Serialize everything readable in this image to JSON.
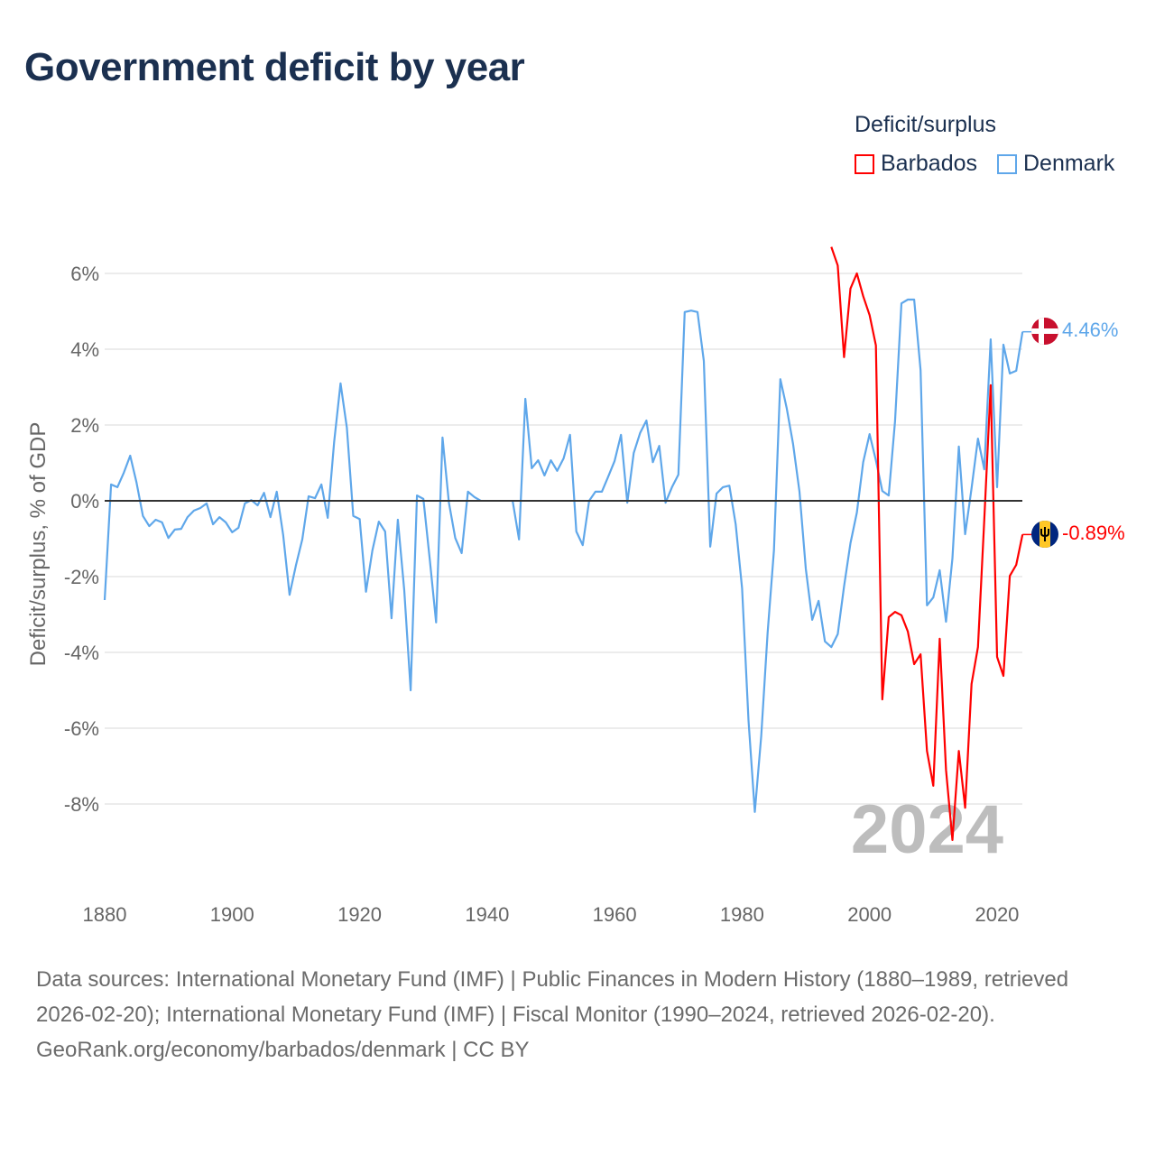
{
  "title": "Government deficit by year",
  "legend": {
    "title": "Deficit/surplus",
    "items": [
      {
        "name": "Barbados",
        "color": "#ff0000"
      },
      {
        "name": "Denmark",
        "color": "#5fa7ea"
      }
    ]
  },
  "year_watermark": "2024",
  "footer": {
    "sources": "Data sources: International Monetary Fund (IMF) | Public Finances in Modern History (1880–1989, retrieved 2026-02-20); International Monetary Fund (IMF) | Fiscal Monitor (1990–2024, retrieved 2026-02-20).",
    "credit": "GeoRank.org/economy/barbados/denmark | CC BY"
  },
  "chart_data": {
    "type": "line",
    "title": "Government deficit by year",
    "xlabel": "",
    "ylabel": "Deficit/surplus, % of GDP",
    "xlim": [
      1880,
      2024
    ],
    "ylim": [
      -9.5,
      7
    ],
    "x_ticks": [
      1880,
      1900,
      1920,
      1940,
      1960,
      1980,
      2000,
      2020
    ],
    "x_tick_labels": [
      "1880",
      "1900",
      "1920",
      "1940",
      "1960",
      "1980",
      "2000",
      "2020"
    ],
    "y_ticks": [
      6,
      4,
      2,
      0,
      -2,
      -4,
      -6,
      -8
    ],
    "y_tick_labels": [
      "6%",
      "4%",
      "2%",
      "0%",
      "-2%",
      "-4%",
      "-6%",
      "-8%"
    ],
    "grid": true,
    "legend_position": "top-right",
    "series": [
      {
        "name": "Denmark",
        "color": "#5fa7ea",
        "end_label": "4.46%",
        "flag": "denmark-flag",
        "start_year": 1880,
        "values": [
          -2.62,
          0.43,
          0.36,
          0.74,
          1.19,
          0.48,
          -0.4,
          -0.67,
          -0.5,
          -0.57,
          -0.98,
          -0.76,
          -0.74,
          -0.43,
          -0.26,
          -0.19,
          -0.07,
          -0.62,
          -0.43,
          -0.57,
          -0.83,
          -0.71,
          -0.07,
          0.02,
          -0.12,
          0.21,
          -0.43,
          0.24,
          -0.9,
          -2.48,
          -1.71,
          -1.02,
          0.12,
          0.07,
          0.43,
          -0.45,
          1.55,
          3.1,
          1.93,
          -0.4,
          -0.48,
          -2.4,
          -1.31,
          -0.55,
          -0.81,
          -3.1,
          -0.5,
          -2.36,
          -5.0,
          0.14,
          0.05,
          -1.55,
          -3.21,
          1.67,
          -0.05,
          -0.98,
          -1.38,
          0.24,
          0.1,
          0.0,
          null,
          null,
          null,
          null,
          0.0,
          -1.02,
          2.69,
          0.86,
          1.07,
          0.67,
          1.07,
          0.79,
          1.12,
          1.74,
          -0.81,
          -1.17,
          0.0,
          0.24,
          0.24,
          0.64,
          1.05,
          1.74,
          -0.05,
          1.26,
          1.79,
          2.12,
          1.02,
          1.45,
          -0.05,
          0.36,
          0.69,
          4.98,
          5.02,
          4.98,
          3.69,
          -1.21,
          0.19,
          0.36,
          0.4,
          -0.62,
          -2.31,
          -5.79,
          -8.21,
          -6.21,
          -3.48,
          -1.31,
          3.21,
          2.45,
          1.5,
          0.24,
          -1.79,
          -3.14,
          -2.64,
          -3.71,
          -3.86,
          -3.52,
          -2.26,
          -1.12,
          -0.31,
          1.02,
          1.76,
          1.07,
          0.26,
          0.14,
          2.1,
          5.21,
          5.31,
          5.31,
          3.45,
          -2.76,
          -2.55,
          -1.83,
          -3.19,
          -1.52,
          1.43,
          -0.88,
          0.33,
          1.64,
          0.83,
          4.26,
          0.36,
          4.12,
          3.36,
          3.43,
          4.46
        ]
      },
      {
        "name": "Barbados",
        "color": "#ff0000",
        "end_label": "-0.89%",
        "flag": "barbados-flag",
        "start_year": 1994,
        "values": [
          6.7,
          6.21,
          3.79,
          5.6,
          6.0,
          5.4,
          4.9,
          4.1,
          -5.24,
          -3.07,
          -2.93,
          -3.02,
          -3.45,
          -4.31,
          -4.05,
          -6.6,
          -7.52,
          -3.64,
          -7.1,
          -8.95,
          -6.6,
          -8.1,
          -4.83,
          -3.86,
          -0.5,
          3.05,
          -4.12,
          -4.62,
          -1.98,
          -1.69,
          -0.89
        ]
      }
    ]
  }
}
